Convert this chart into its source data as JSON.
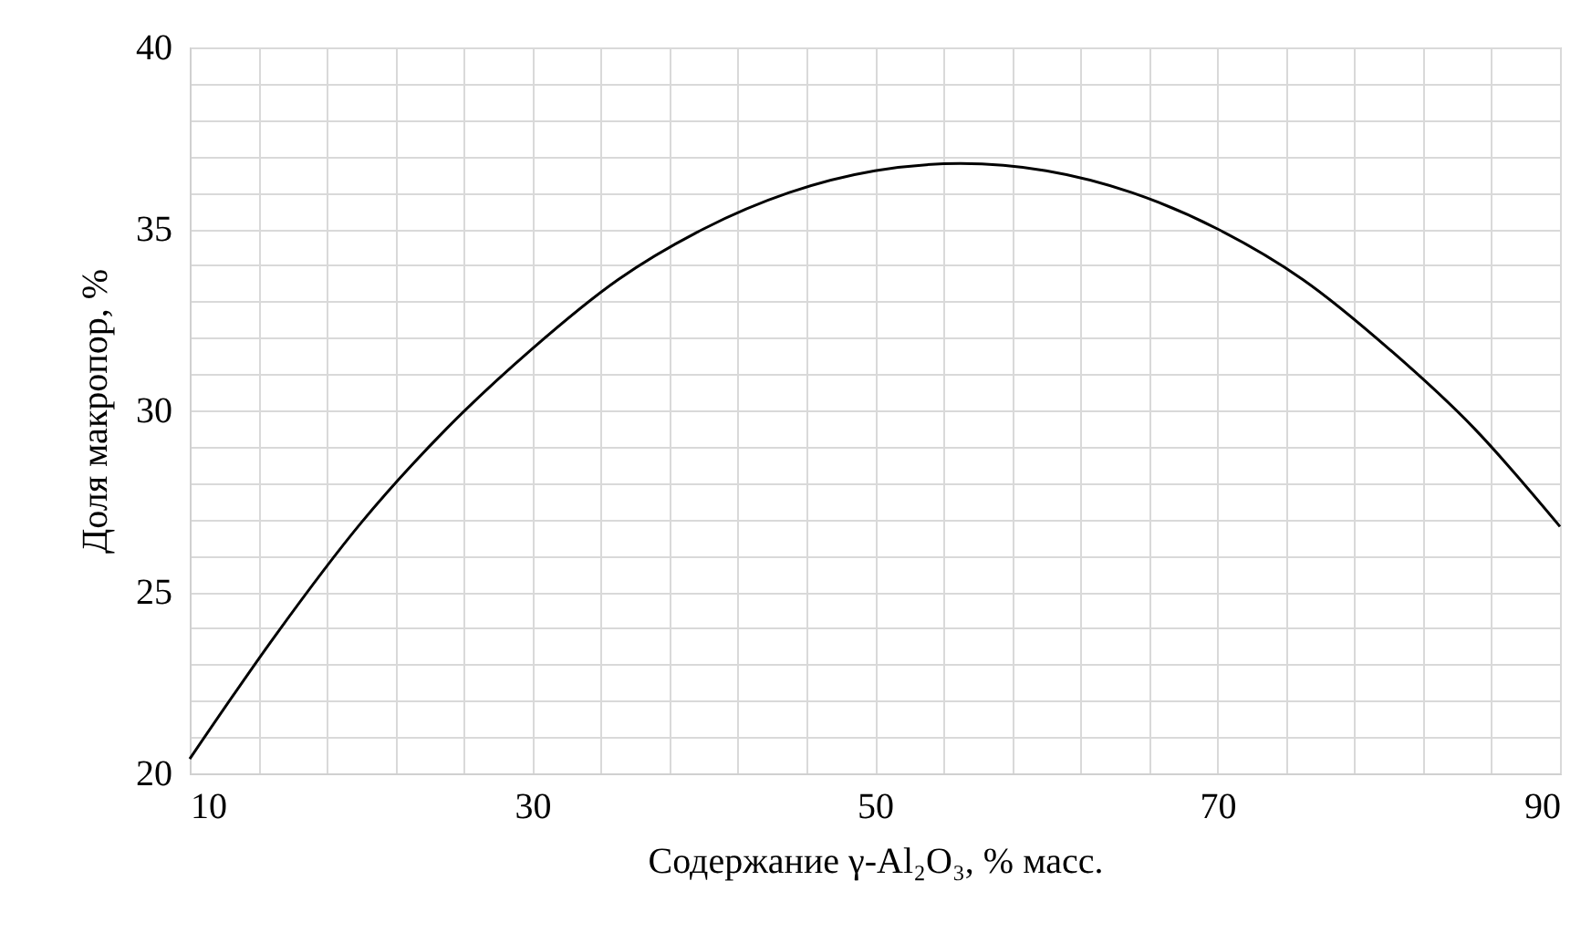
{
  "chart_data": {
    "type": "line",
    "xlabel": "Содержание γ-Al₂O₃, % масс.",
    "ylabel": "Доля макропор, %",
    "x": [
      10,
      15,
      20,
      25,
      30,
      35,
      40,
      45,
      50,
      55,
      60,
      65,
      70,
      75,
      80,
      85,
      90
    ],
    "series": [
      {
        "color": "#000000",
        "values": [
          20.4,
          23.8,
          26.9,
          29.5,
          31.7,
          33.6,
          35.0,
          36.0,
          36.6,
          36.8,
          36.6,
          36.0,
          35.0,
          33.6,
          31.7,
          29.5,
          26.8
        ]
      }
    ],
    "xlim": [
      10,
      90
    ],
    "ylim": [
      20,
      40
    ],
    "xticks": [
      10,
      {
        "value": 14,
        "label": null
      },
      {
        "value": 18,
        "label": null
      },
      {
        "value": 22,
        "label": null
      },
      {
        "value": 26,
        "label": null
      },
      30,
      {
        "value": 34,
        "label": null
      },
      {
        "value": 38,
        "label": null
      },
      {
        "value": 42,
        "label": null
      },
      {
        "value": 46,
        "label": null
      },
      50,
      {
        "value": 54,
        "label": null
      },
      {
        "value": 58,
        "label": null
      },
      {
        "value": 62,
        "label": null
      },
      {
        "value": 66,
        "label": null
      },
      70,
      {
        "value": 74,
        "label": null
      },
      {
        "value": 78,
        "label": null
      },
      {
        "value": 82,
        "label": null
      },
      {
        "value": 86,
        "label": null
      },
      90
    ],
    "yticks": [
      20,
      {
        "value": 21,
        "label": null
      },
      {
        "value": 22,
        "label": null
      },
      {
        "value": 23,
        "label": null
      },
      {
        "value": 24,
        "label": null
      },
      25,
      {
        "value": 26,
        "label": null
      },
      {
        "value": 27,
        "label": null
      },
      {
        "value": 28,
        "label": null
      },
      {
        "value": 29,
        "label": null
      },
      30,
      {
        "value": 31,
        "label": null
      },
      {
        "value": 32,
        "label": null
      },
      {
        "value": 33,
        "label": null
      },
      {
        "value": 34,
        "label": null
      },
      35,
      {
        "value": 36,
        "label": null
      },
      {
        "value": 37,
        "label": null
      },
      {
        "value": 38,
        "label": null
      },
      {
        "value": 39,
        "label": null
      },
      40
    ],
    "grid": true,
    "marker": "none",
    "line_style": "solid"
  }
}
